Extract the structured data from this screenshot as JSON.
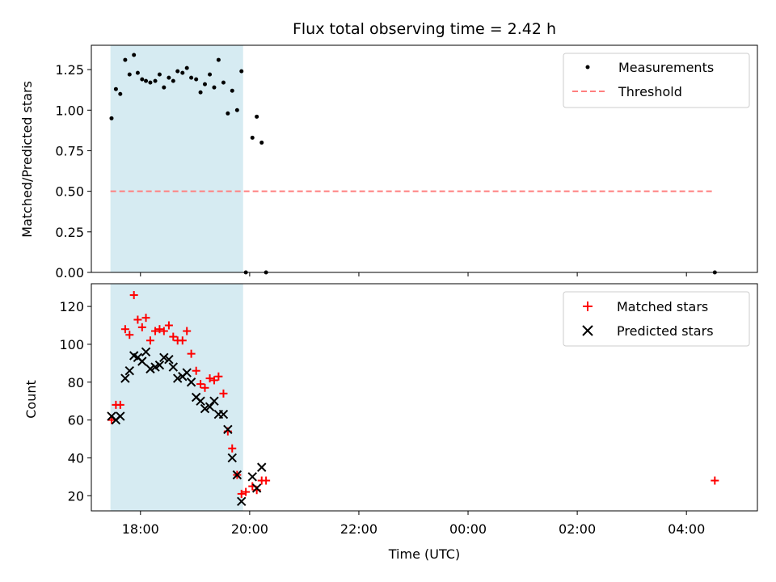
{
  "chart_data": [
    {
      "type": "scatter",
      "title": "Flux total observing time = 2.42 h",
      "ylabel": "Matched/Predicted stars",
      "xlabel": "",
      "x_unit": "hours (UTC, continuous past midnight)",
      "xlim": [
        17.1,
        29.3
      ],
      "ylim": [
        0.0,
        1.4
      ],
      "yticks": [
        "0.00",
        "0.25",
        "0.50",
        "0.75",
        "1.00",
        "1.25"
      ],
      "legend_position": "upper right",
      "shaded_interval": {
        "x_start": 17.45,
        "x_end": 19.88,
        "color": "#add8e6"
      },
      "series": [
        {
          "name": "Measurements",
          "marker": "dot",
          "color": "#000000",
          "points": [
            [
              17.47,
              0.95
            ],
            [
              17.55,
              1.13
            ],
            [
              17.63,
              1.1
            ],
            [
              17.72,
              1.31
            ],
            [
              17.8,
              1.22
            ],
            [
              17.88,
              1.34
            ],
            [
              17.95,
              1.23
            ],
            [
              18.03,
              1.19
            ],
            [
              18.1,
              1.18
            ],
            [
              18.18,
              1.17
            ],
            [
              18.27,
              1.18
            ],
            [
              18.35,
              1.22
            ],
            [
              18.43,
              1.14
            ],
            [
              18.52,
              1.2
            ],
            [
              18.6,
              1.18
            ],
            [
              18.68,
              1.24
            ],
            [
              18.77,
              1.23
            ],
            [
              18.85,
              1.26
            ],
            [
              18.93,
              1.2
            ],
            [
              19.02,
              1.19
            ],
            [
              19.1,
              1.11
            ],
            [
              19.18,
              1.16
            ],
            [
              19.27,
              1.22
            ],
            [
              19.35,
              1.14
            ],
            [
              19.43,
              1.31
            ],
            [
              19.52,
              1.17
            ],
            [
              19.6,
              0.98
            ],
            [
              19.68,
              1.12
            ],
            [
              19.77,
              1.0
            ],
            [
              19.85,
              1.24
            ],
            [
              19.93,
              0.0
            ],
            [
              20.05,
              0.83
            ],
            [
              20.13,
              0.96
            ],
            [
              20.22,
              0.8
            ],
            [
              20.3,
              0.0
            ],
            [
              28.52,
              0.0
            ]
          ]
        },
        {
          "name": "Threshold",
          "marker": "dashed-line",
          "color": "#ff7f7f",
          "y": 0.5,
          "x_range": [
            17.45,
            28.52
          ]
        }
      ]
    },
    {
      "type": "scatter",
      "title": "",
      "ylabel": "Count",
      "xlabel": "Time (UTC)",
      "x_unit": "hours (UTC, continuous past midnight)",
      "xlim": [
        17.1,
        29.3
      ],
      "ylim": [
        12,
        132
      ],
      "yticks": [
        "20",
        "40",
        "60",
        "80",
        "100",
        "120"
      ],
      "xticks": [
        {
          "value": 18,
          "label": "18:00"
        },
        {
          "value": 20,
          "label": "20:00"
        },
        {
          "value": 22,
          "label": "22:00"
        },
        {
          "value": 24,
          "label": "00:00"
        },
        {
          "value": 26,
          "label": "02:00"
        },
        {
          "value": 28,
          "label": "04:00"
        }
      ],
      "legend_position": "upper right",
      "shaded_interval": {
        "x_start": 17.45,
        "x_end": 19.88,
        "color": "#add8e6"
      },
      "series": [
        {
          "name": "Matched stars",
          "marker": "plus",
          "color": "#ff0000",
          "points": [
            [
              17.47,
              60
            ],
            [
              17.55,
              68
            ],
            [
              17.63,
              68
            ],
            [
              17.72,
              108
            ],
            [
              17.8,
              105
            ],
            [
              17.88,
              126
            ],
            [
              17.95,
              113
            ],
            [
              18.03,
              109
            ],
            [
              18.1,
              114
            ],
            [
              18.18,
              102
            ],
            [
              18.27,
              107
            ],
            [
              18.35,
              108
            ],
            [
              18.43,
              107
            ],
            [
              18.52,
              110
            ],
            [
              18.6,
              104
            ],
            [
              18.68,
              102
            ],
            [
              18.77,
              102
            ],
            [
              18.85,
              107
            ],
            [
              18.93,
              95
            ],
            [
              19.02,
              86
            ],
            [
              19.1,
              79
            ],
            [
              19.18,
              77
            ],
            [
              19.27,
              82
            ],
            [
              19.35,
              81
            ],
            [
              19.43,
              83
            ],
            [
              19.52,
              74
            ],
            [
              19.6,
              54
            ],
            [
              19.68,
              45
            ],
            [
              19.77,
              31
            ],
            [
              19.85,
              21
            ],
            [
              19.93,
              22
            ],
            [
              20.05,
              25
            ],
            [
              20.13,
              23
            ],
            [
              20.22,
              28
            ],
            [
              20.3,
              28
            ],
            [
              28.52,
              28
            ]
          ]
        },
        {
          "name": "Predicted stars",
          "marker": "x",
          "color": "#000000",
          "points": [
            [
              17.47,
              62
            ],
            [
              17.55,
              60
            ],
            [
              17.63,
              62
            ],
            [
              17.72,
              82
            ],
            [
              17.8,
              86
            ],
            [
              17.88,
              94
            ],
            [
              17.95,
              93
            ],
            [
              18.03,
              91
            ],
            [
              18.1,
              96
            ],
            [
              18.18,
              87
            ],
            [
              18.27,
              88
            ],
            [
              18.35,
              89
            ],
            [
              18.43,
              93
            ],
            [
              18.52,
              92
            ],
            [
              18.6,
              88
            ],
            [
              18.68,
              82
            ],
            [
              18.77,
              83
            ],
            [
              18.85,
              85
            ],
            [
              18.93,
              80
            ],
            [
              19.02,
              72
            ],
            [
              19.1,
              70
            ],
            [
              19.18,
              66
            ],
            [
              19.27,
              67
            ],
            [
              19.35,
              70
            ],
            [
              19.43,
              63
            ],
            [
              19.52,
              63
            ],
            [
              19.6,
              55
            ],
            [
              19.68,
              40
            ],
            [
              19.77,
              31
            ],
            [
              19.85,
              17
            ],
            [
              20.05,
              30
            ],
            [
              20.13,
              24
            ],
            [
              20.22,
              35
            ]
          ]
        }
      ]
    }
  ]
}
